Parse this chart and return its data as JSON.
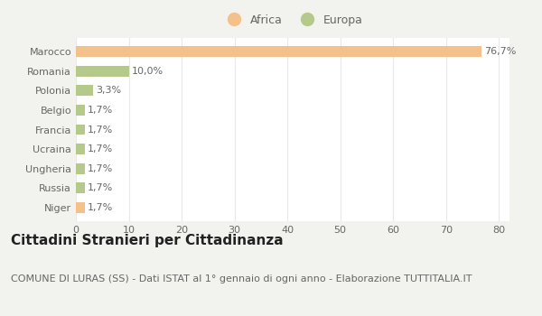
{
  "categories": [
    "Marocco",
    "Romania",
    "Polonia",
    "Belgio",
    "Francia",
    "Ucraina",
    "Ungheria",
    "Russia",
    "Niger"
  ],
  "values": [
    76.7,
    10.0,
    3.3,
    1.7,
    1.7,
    1.7,
    1.7,
    1.7,
    1.7
  ],
  "labels": [
    "76,7%",
    "10,0%",
    "3,3%",
    "1,7%",
    "1,7%",
    "1,7%",
    "1,7%",
    "1,7%",
    "1,7%"
  ],
  "colors": [
    "#f5c18a",
    "#b5c98a",
    "#b5c98a",
    "#b5c98a",
    "#b5c98a",
    "#b5c98a",
    "#b5c98a",
    "#b5c98a",
    "#f5c18a"
  ],
  "legend_labels": [
    "Africa",
    "Europa"
  ],
  "legend_colors": [
    "#f5c18a",
    "#b5c98a"
  ],
  "xlim": [
    0,
    82
  ],
  "xticks": [
    0,
    10,
    20,
    30,
    40,
    50,
    60,
    70,
    80
  ],
  "title": "Cittadini Stranieri per Cittadinanza",
  "subtitle": "COMUNE DI LURAS (SS) - Dati ISTAT al 1° gennaio di ogni anno - Elaborazione TUTTITALIA.IT",
  "background_color": "#f2f2ee",
  "plot_bg_color": "#ffffff",
  "bar_height": 0.55,
  "title_fontsize": 11,
  "subtitle_fontsize": 8,
  "label_fontsize": 8,
  "tick_fontsize": 8,
  "grid_color": "#e8e8e8",
  "text_color": "#666666"
}
